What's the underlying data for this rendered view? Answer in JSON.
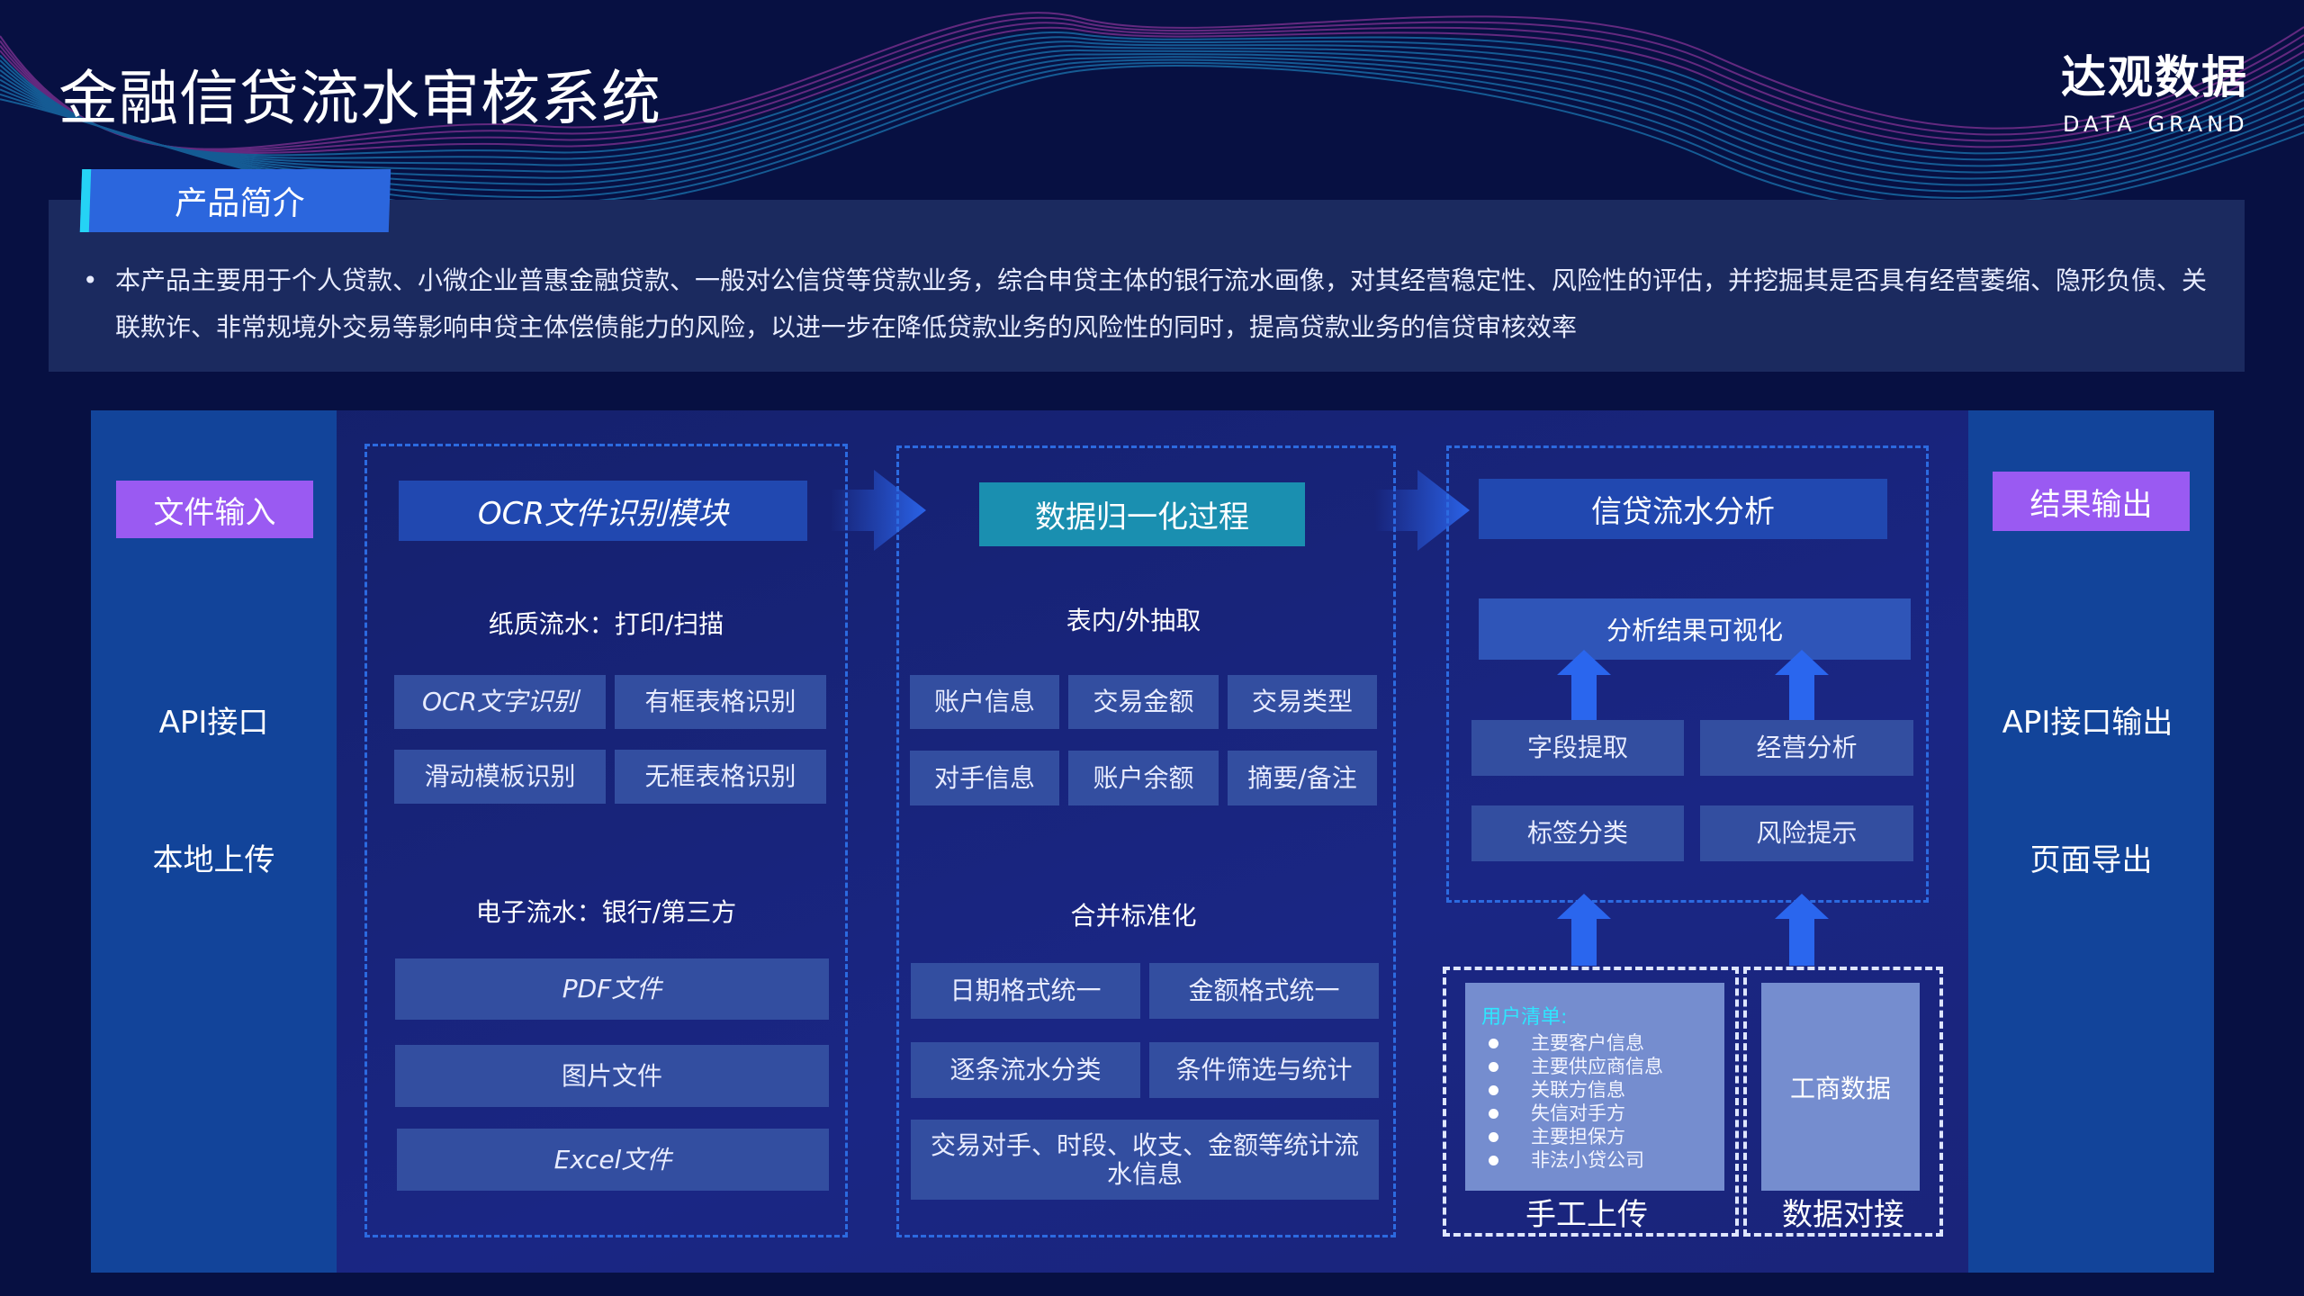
{
  "header": {
    "title": "金融信贷流水审核系统",
    "logo_cn": "达观数据",
    "logo_en": "DATA GRAND"
  },
  "intro": {
    "tab": "产品简介",
    "bullet": "•",
    "text": "本产品主要用于个人贷款、小微企业普惠金融贷款、一般对公信贷等贷款业务，综合申贷主体的银行流水画像，对其经营稳定性、风险性的评估，并挖掘其是否具有经营萎缩、隐形负债、关联欺诈、非常规境外交易等影响申贷主体偿债能力的风险，以进一步在降低贷款业务的风险性的同时，提高贷款业务的信贷审核效率"
  },
  "input": {
    "title": "文件输入",
    "items": [
      "API接口",
      "本地上传"
    ]
  },
  "output": {
    "title": "结果输出",
    "items": [
      "API接口输出",
      "页面导出"
    ]
  },
  "ocr": {
    "title": "OCR文件识别模块",
    "paper_label": "纸质流水：打印/扫描",
    "paper_items": [
      "OCR文字识别",
      "有框表格识别",
      "滑动模板识别",
      "无框表格识别"
    ],
    "electronic_label": "电子流水：银行/第三方",
    "electronic_items": [
      "PDF文件",
      "图片文件",
      "Excel文件"
    ]
  },
  "normalize": {
    "title": "数据归一化过程",
    "extract_label": "表内/外抽取",
    "extract_items": [
      "账户信息",
      "交易金额",
      "交易类型",
      "对手信息",
      "账户余额",
      "摘要/备注"
    ],
    "merge_label": "合并标准化",
    "merge_items": [
      "日期格式统一",
      "金额格式统一",
      "逐条流水分类",
      "条件筛选与统计"
    ],
    "merge_wide": "交易对手、时段、收支、金额等统计流水信息"
  },
  "analysis": {
    "title": "信贷流水分析",
    "visual": "分析结果可视化",
    "items": [
      "字段提取",
      "经营分析",
      "标签分类",
      "风险提示"
    ]
  },
  "manual": {
    "label": "手工上传",
    "list_title": "用户清单:",
    "list": [
      "主要客户信息",
      "主要供应商信息",
      "关联方信息",
      "失信对手方",
      "主要担保方",
      "非法小贷公司"
    ]
  },
  "docking": {
    "label": "数据对接",
    "box": "工商数据"
  },
  "colors": {
    "background": "#071042",
    "accent_purple": "#9a5af2",
    "header_blue": "#2148b0",
    "teal": "#1a8fb0",
    "list_title": "#2ee6ff"
  }
}
